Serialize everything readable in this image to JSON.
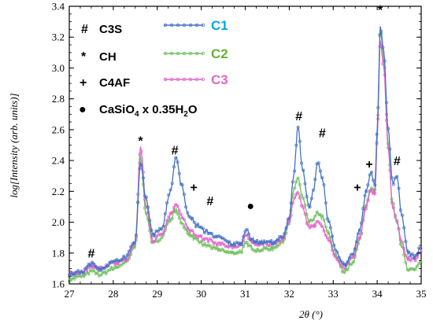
{
  "chart_data": {
    "type": "line",
    "xlabel": "2θ (°)",
    "ylabel": "log[Intensity (arb. units)]",
    "xlim": [
      27,
      35
    ],
    "ylim": [
      1.6,
      3.4
    ],
    "x_ticks": [
      "27",
      "28",
      "29",
      "30",
      "31",
      "32",
      "33",
      "34",
      "35"
    ],
    "y_ticks": [
      "1.6",
      "1.8",
      "2.0",
      "2.2",
      "2.4",
      "2.6",
      "2.8",
      "3.0",
      "3.2",
      "3.4"
    ],
    "grid": false,
    "legend_position": "top-left",
    "phase_legend": [
      {
        "symbol": "#",
        "label": "C3S"
      },
      {
        "symbol": "*",
        "label": "CH"
      },
      {
        "symbol": "+",
        "label": "C4AF"
      },
      {
        "symbol": "●",
        "label": "CaSiO",
        "sub": "4",
        "label_tail": " x 0.35H",
        "sub2": "2",
        "label_end": "O"
      }
    ],
    "annotations": [
      {
        "symbol": "#",
        "x": 27.5,
        "y": 1.77
      },
      {
        "symbol": "*",
        "x": 28.62,
        "y": 2.5
      },
      {
        "symbol": "#",
        "x": 29.4,
        "y": 2.44
      },
      {
        "symbol": "+",
        "x": 29.83,
        "y": 2.2
      },
      {
        "symbol": "#",
        "x": 30.2,
        "y": 2.11
      },
      {
        "symbol": "●",
        "x": 31.12,
        "y": 2.08
      },
      {
        "symbol": "#",
        "x": 32.22,
        "y": 2.66
      },
      {
        "symbol": "#",
        "x": 32.75,
        "y": 2.55
      },
      {
        "symbol": "+",
        "x": 33.55,
        "y": 2.2
      },
      {
        "symbol": "+",
        "x": 33.82,
        "y": 2.35
      },
      {
        "symbol": "*",
        "x": 34.07,
        "y": 3.35
      },
      {
        "symbol": "#",
        "x": 34.45,
        "y": 2.37
      }
    ],
    "series": [
      {
        "name": "C1",
        "color": "#4472C4",
        "label_color": "#00A8E8",
        "points": [
          [
            27.0,
            1.66
          ],
          [
            27.3,
            1.68
          ],
          [
            27.5,
            1.73
          ],
          [
            27.7,
            1.7
          ],
          [
            28.0,
            1.74
          ],
          [
            28.3,
            1.78
          ],
          [
            28.5,
            1.88
          ],
          [
            28.62,
            2.38
          ],
          [
            28.75,
            2.15
          ],
          [
            28.9,
            1.92
          ],
          [
            29.1,
            1.96
          ],
          [
            29.3,
            2.2
          ],
          [
            29.42,
            2.42
          ],
          [
            29.55,
            2.25
          ],
          [
            29.7,
            2.05
          ],
          [
            29.9,
            1.98
          ],
          [
            30.1,
            1.94
          ],
          [
            30.4,
            1.9
          ],
          [
            30.7,
            1.86
          ],
          [
            30.9,
            1.86
          ],
          [
            31.02,
            1.96
          ],
          [
            31.12,
            1.9
          ],
          [
            31.25,
            1.87
          ],
          [
            31.6,
            1.87
          ],
          [
            31.85,
            1.9
          ],
          [
            32.0,
            2.02
          ],
          [
            32.1,
            2.3
          ],
          [
            32.2,
            2.62
          ],
          [
            32.3,
            2.35
          ],
          [
            32.45,
            2.1
          ],
          [
            32.55,
            2.2
          ],
          [
            32.65,
            2.39
          ],
          [
            32.75,
            2.28
          ],
          [
            32.9,
            2.0
          ],
          [
            33.05,
            1.82
          ],
          [
            33.25,
            1.72
          ],
          [
            33.45,
            1.8
          ],
          [
            33.6,
            1.95
          ],
          [
            33.75,
            2.2
          ],
          [
            33.85,
            2.32
          ],
          [
            33.95,
            2.25
          ],
          [
            34.0,
            2.6
          ],
          [
            34.07,
            3.26
          ],
          [
            34.15,
            3.1
          ],
          [
            34.25,
            2.6
          ],
          [
            34.35,
            2.25
          ],
          [
            34.45,
            2.3
          ],
          [
            34.55,
            2.05
          ],
          [
            34.7,
            1.8
          ],
          [
            34.85,
            1.78
          ],
          [
            35.0,
            1.84
          ]
        ]
      },
      {
        "name": "C2",
        "color": "#70C060",
        "label_color": "#66B032",
        "points": [
          [
            27.0,
            1.63
          ],
          [
            27.3,
            1.65
          ],
          [
            27.5,
            1.68
          ],
          [
            27.7,
            1.66
          ],
          [
            28.0,
            1.7
          ],
          [
            28.3,
            1.74
          ],
          [
            28.5,
            1.84
          ],
          [
            28.62,
            2.42
          ],
          [
            28.75,
            2.05
          ],
          [
            28.9,
            1.86
          ],
          [
            29.1,
            1.9
          ],
          [
            29.3,
            2.02
          ],
          [
            29.42,
            2.08
          ],
          [
            29.55,
            2.0
          ],
          [
            29.7,
            1.93
          ],
          [
            29.9,
            1.88
          ],
          [
            30.1,
            1.85
          ],
          [
            30.4,
            1.82
          ],
          [
            30.7,
            1.8
          ],
          [
            30.9,
            1.81
          ],
          [
            31.02,
            1.86
          ],
          [
            31.12,
            1.84
          ],
          [
            31.25,
            1.82
          ],
          [
            31.6,
            1.83
          ],
          [
            31.85,
            1.87
          ],
          [
            32.0,
            2.0
          ],
          [
            32.1,
            2.2
          ],
          [
            32.2,
            2.29
          ],
          [
            32.3,
            2.16
          ],
          [
            32.45,
            2.0
          ],
          [
            32.55,
            2.02
          ],
          [
            32.65,
            2.06
          ],
          [
            32.75,
            2.03
          ],
          [
            32.9,
            1.92
          ],
          [
            33.05,
            1.78
          ],
          [
            33.25,
            1.68
          ],
          [
            33.45,
            1.74
          ],
          [
            33.6,
            1.88
          ],
          [
            33.75,
            2.12
          ],
          [
            33.85,
            2.22
          ],
          [
            33.95,
            2.2
          ],
          [
            34.0,
            2.55
          ],
          [
            34.07,
            3.24
          ],
          [
            34.15,
            3.05
          ],
          [
            34.25,
            2.5
          ],
          [
            34.35,
            2.12
          ],
          [
            34.45,
            2.0
          ],
          [
            34.55,
            1.85
          ],
          [
            34.7,
            1.7
          ],
          [
            34.85,
            1.69
          ],
          [
            35.0,
            1.74
          ]
        ]
      },
      {
        "name": "C3",
        "color": "#E066C8",
        "label_color": "#E466C6",
        "points": [
          [
            27.0,
            1.67
          ],
          [
            27.3,
            1.68
          ],
          [
            27.5,
            1.72
          ],
          [
            27.7,
            1.7
          ],
          [
            28.0,
            1.73
          ],
          [
            28.3,
            1.76
          ],
          [
            28.5,
            1.86
          ],
          [
            28.62,
            2.49
          ],
          [
            28.75,
            2.1
          ],
          [
            28.9,
            1.88
          ],
          [
            29.1,
            1.93
          ],
          [
            29.3,
            2.05
          ],
          [
            29.42,
            2.12
          ],
          [
            29.55,
            2.04
          ],
          [
            29.7,
            1.96
          ],
          [
            29.9,
            1.91
          ],
          [
            30.1,
            1.89
          ],
          [
            30.4,
            1.86
          ],
          [
            30.7,
            1.84
          ],
          [
            30.9,
            1.85
          ],
          [
            31.02,
            1.91
          ],
          [
            31.12,
            1.88
          ],
          [
            31.25,
            1.86
          ],
          [
            31.6,
            1.86
          ],
          [
            31.85,
            1.89
          ],
          [
            32.0,
            2.0
          ],
          [
            32.1,
            2.14
          ],
          [
            32.2,
            2.2
          ],
          [
            32.3,
            2.1
          ],
          [
            32.45,
            1.97
          ],
          [
            32.55,
            1.98
          ],
          [
            32.65,
            2.0
          ],
          [
            32.75,
            1.97
          ],
          [
            32.9,
            1.89
          ],
          [
            33.05,
            1.77
          ],
          [
            33.25,
            1.7
          ],
          [
            33.45,
            1.77
          ],
          [
            33.6,
            1.9
          ],
          [
            33.75,
            2.1
          ],
          [
            33.85,
            2.2
          ],
          [
            33.95,
            2.18
          ],
          [
            34.0,
            2.55
          ],
          [
            34.07,
            3.18
          ],
          [
            34.15,
            3.0
          ],
          [
            34.25,
            2.48
          ],
          [
            34.35,
            2.1
          ],
          [
            34.45,
            2.0
          ],
          [
            34.55,
            1.88
          ],
          [
            34.7,
            1.76
          ],
          [
            34.85,
            1.76
          ],
          [
            35.0,
            1.82
          ]
        ]
      }
    ]
  }
}
